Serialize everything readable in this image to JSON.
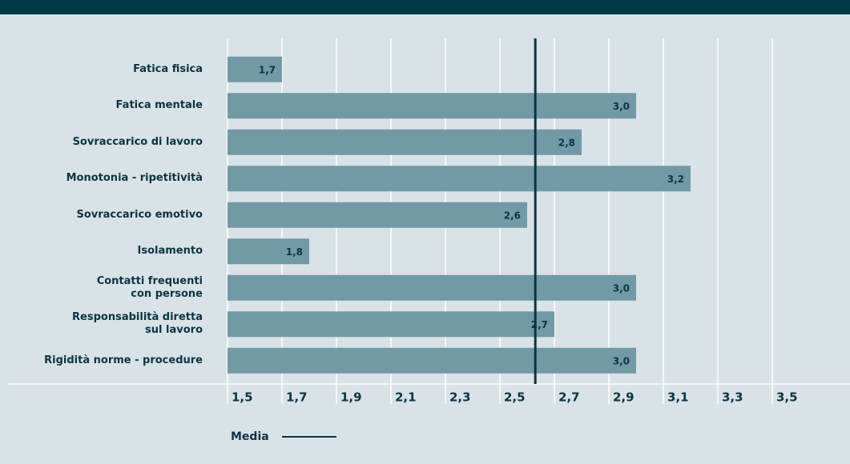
{
  "chart_data": {
    "type": "bar",
    "orientation": "horizontal",
    "categories": [
      "Fatica fisica",
      "Fatica mentale",
      "Sovraccarico di lavoro",
      "Monotonia - ripetitività",
      "Sovraccarico emotivo",
      "Isolamento",
      "Contatti frequenti\ncon persone",
      "Responsabilità diretta\nsul lavoro",
      "Rigidità norme - procedure"
    ],
    "values": [
      1.7,
      3.0,
      2.8,
      3.2,
      2.6,
      1.8,
      3.0,
      2.7,
      3.0
    ],
    "value_labels": [
      "1,7",
      "3,0",
      "2,8",
      "3,2",
      "2,6",
      "1,8",
      "3,0",
      "2,7",
      "3,0"
    ],
    "color": "#7299a6",
    "xlim": [
      1.5,
      3.5
    ],
    "xticks": [
      {
        "value": 1.5,
        "label": "1,5"
      },
      {
        "value": 1.7,
        "label": "1,7"
      },
      {
        "value": 1.9,
        "label": "1,9"
      },
      {
        "value": 2.1,
        "label": "2,1"
      },
      {
        "value": 2.3,
        "label": "2,3"
      },
      {
        "value": 2.5,
        "label": "2,5"
      },
      {
        "value": 2.7,
        "label": "2,7"
      },
      {
        "value": 2.9,
        "label": "2,9"
      },
      {
        "value": 3.1,
        "label": "3,1"
      },
      {
        "value": 3.3,
        "label": "3,3"
      },
      {
        "value": 3.5,
        "label": "3,5"
      }
    ],
    "grid": true,
    "mean": 2.63,
    "mean_label": "Media",
    "mean_color": "#0b3443"
  }
}
